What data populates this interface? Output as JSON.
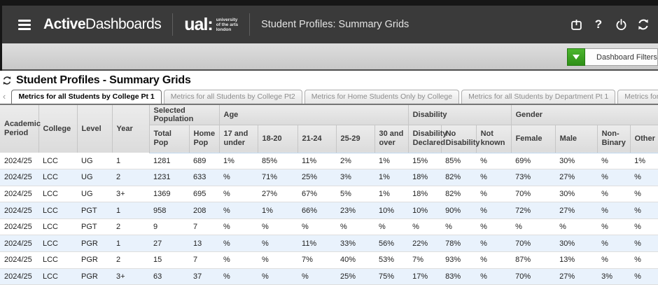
{
  "app_bar": {
    "brand_bold": "Active",
    "brand_rest": "Dashboards",
    "ual_mark": "ual:",
    "ual_line1": "university",
    "ual_line2": "of the arts",
    "ual_line3": "london",
    "title": "Student Profiles: Summary Grids",
    "help_label": "?"
  },
  "filter_bar": {
    "label": "Dashboard Filters"
  },
  "content": {
    "heading": "Student Profiles - Summary Grids",
    "tab_scroll_left": "‹"
  },
  "tabs": [
    {
      "label": "Metrics for all Students by College Pt 1",
      "active": true
    },
    {
      "label": "Metrics for all Students by College Pt2",
      "active": false
    },
    {
      "label": "Metrics for Home Students Only by College",
      "active": false
    },
    {
      "label": "Metrics for all Students by Department Pt 1",
      "active": false
    },
    {
      "label": "Metrics for all Students by Department - Pt",
      "active": false
    }
  ],
  "table": {
    "plain_headers": [
      "Academic Period",
      "College",
      "Level",
      "Year"
    ],
    "groups": [
      {
        "label": "Selected Population",
        "columns": [
          "Total Pop",
          "Home Pop"
        ]
      },
      {
        "label": "Age",
        "columns": [
          "17 and under",
          "18-20",
          "21-24",
          "25-29",
          "30 and over"
        ]
      },
      {
        "label": "Disability",
        "columns": [
          "Disability Declared",
          "No Disability",
          "Not known"
        ]
      },
      {
        "label": "Gender",
        "columns": [
          "Female",
          "Male",
          "Non-Binary",
          "Other"
        ]
      }
    ],
    "rows": [
      [
        "2024/25",
        "LCC",
        "UG",
        "1",
        "1281",
        "689",
        "1%",
        "85%",
        "11%",
        "2%",
        "1%",
        "15%",
        "85%",
        "%",
        "69%",
        "30%",
        "%",
        "1%"
      ],
      [
        "2024/25",
        "LCC",
        "UG",
        "2",
        "1231",
        "633",
        "%",
        "71%",
        "25%",
        "3%",
        "1%",
        "18%",
        "82%",
        "%",
        "73%",
        "27%",
        "%",
        "%"
      ],
      [
        "2024/25",
        "LCC",
        "UG",
        "3+",
        "1369",
        "695",
        "%",
        "27%",
        "67%",
        "5%",
        "1%",
        "18%",
        "82%",
        "%",
        "70%",
        "30%",
        "%",
        "%"
      ],
      [
        "2024/25",
        "LCC",
        "PGT",
        "1",
        "958",
        "208",
        "%",
        "1%",
        "66%",
        "23%",
        "10%",
        "10%",
        "90%",
        "%",
        "72%",
        "27%",
        "%",
        "%"
      ],
      [
        "2024/25",
        "LCC",
        "PGT",
        "2",
        "9",
        "7",
        "%",
        "%",
        "%",
        "%",
        "%",
        "%",
        "%",
        "%",
        "%",
        "%",
        "%",
        "%"
      ],
      [
        "2024/25",
        "LCC",
        "PGR",
        "1",
        "27",
        "13",
        "%",
        "%",
        "11%",
        "33%",
        "56%",
        "22%",
        "78%",
        "%",
        "70%",
        "30%",
        "%",
        "%"
      ],
      [
        "2024/25",
        "LCC",
        "PGR",
        "2",
        "15",
        "7",
        "%",
        "%",
        "7%",
        "40%",
        "53%",
        "7%",
        "93%",
        "%",
        "87%",
        "13%",
        "%",
        "%"
      ],
      [
        "2024/25",
        "LCC",
        "PGR",
        "3+",
        "63",
        "37",
        "%",
        "%",
        "%",
        "25%",
        "75%",
        "17%",
        "83%",
        "%",
        "70%",
        "27%",
        "3%",
        "%"
      ]
    ]
  },
  "colors": {
    "accent_green": "#3aa025",
    "alt_row": "#e9f2fc",
    "appbar": "#3a3a3a"
  }
}
